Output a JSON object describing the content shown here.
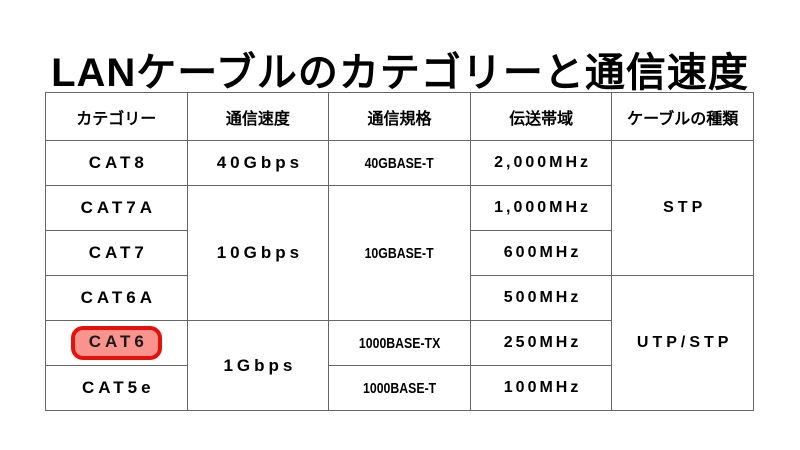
{
  "page": {
    "title": "LANケーブルのカテゴリーと通信速度",
    "background_color": "#ffffff",
    "title_color": "#000000",
    "table_border_color": "#666666"
  },
  "table": {
    "headers": [
      "カテゴリー",
      "通信速度",
      "通信規格",
      "伝送帯域",
      "ケーブルの種類"
    ],
    "rows": [
      {
        "category": "CAT8",
        "speed": "40Gbps",
        "standard": "40GBASE-T",
        "bandwidth": "2,000MHz",
        "cable_type": "STP"
      },
      {
        "category": "CAT7A",
        "speed": "10Gbps",
        "standard": "10GBASE-T",
        "bandwidth": "1,000MHz",
        "cable_type": "STP"
      },
      {
        "category": "CAT7",
        "speed": "10Gbps",
        "standard": "10GBASE-T",
        "bandwidth": "600MHz",
        "cable_type": "STP"
      },
      {
        "category": "CAT6A",
        "speed": "10Gbps",
        "standard": "10GBASE-T",
        "bandwidth": "500MHz",
        "cable_type": "UTP/STP"
      },
      {
        "category": "CAT6",
        "speed": "1Gbps",
        "standard": "1000BASE-TX",
        "bandwidth": "250MHz",
        "cable_type": "UTP/STP",
        "highlighted": true
      },
      {
        "category": "CAT5e",
        "speed": "1Gbps",
        "standard": "1000BASE-T",
        "bandwidth": "100MHz",
        "cable_type": "UTP/STP"
      }
    ],
    "merges": {
      "speed_10gbps_rows": [
        "CAT7A",
        "CAT7",
        "CAT6A"
      ],
      "speed_1gbps_rows": [
        "CAT6",
        "CAT5e"
      ],
      "standard_10gbase_rows": [
        "CAT7A",
        "CAT7",
        "CAT6A"
      ],
      "cable_type_stp_rows": [
        "CAT8",
        "CAT7A",
        "CAT7"
      ],
      "cable_type_utp_stp_rows": [
        "CAT6A",
        "CAT6",
        "CAT5e"
      ]
    }
  },
  "highlight": {
    "label": "CAT6",
    "border_color": "#e8100b",
    "fill_color": "#f8938d",
    "shape": "rounded-rectangle"
  }
}
